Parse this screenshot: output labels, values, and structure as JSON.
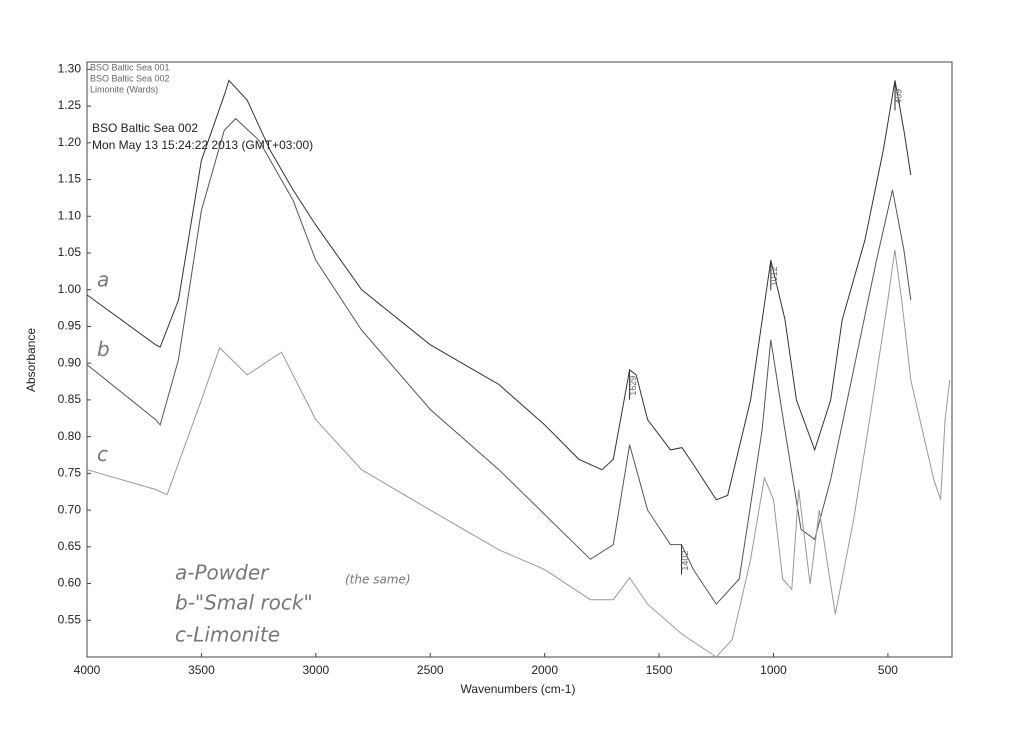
{
  "chart_data": {
    "type": "line",
    "x_label": "Wavenumbers (cm-1)",
    "y_label": "Absorbance",
    "xlim": [
      4000,
      220
    ],
    "ylim": [
      0.5,
      1.31
    ],
    "xticks": [
      4000,
      3500,
      3000,
      2500,
      2000,
      1500,
      1000,
      500
    ],
    "yticks": [
      {
        "value": 0.55,
        "label": "0.55"
      },
      {
        "value": 0.6,
        "label": "0.60"
      },
      {
        "value": 0.65,
        "label": "0.65"
      },
      {
        "value": 0.7,
        "label": "0.70"
      },
      {
        "value": 0.75,
        "label": "0.75"
      },
      {
        "value": 0.8,
        "label": "0.80"
      },
      {
        "value": 0.85,
        "label": "0.85"
      },
      {
        "value": 0.9,
        "label": "0.90"
      },
      {
        "value": 0.95,
        "label": "0.95"
      },
      {
        "value": 1.0,
        "label": "1.00"
      },
      {
        "value": 1.05,
        "label": "1.05"
      },
      {
        "value": 1.1,
        "label": "1.10"
      },
      {
        "value": 1.15,
        "label": "1.15"
      },
      {
        "value": 1.2,
        "label": "1.20"
      },
      {
        "value": 1.25,
        "label": "1.25"
      },
      {
        "value": 1.3,
        "label": "1.30"
      }
    ],
    "grid": false,
    "legend": "top-left",
    "header": [
      "BSO Baltic Sea 002",
      "Mon May 13 15:24:22 2013 (GMT+03:00)"
    ],
    "series": [
      {
        "name": "BSO  Baltic Sea 001",
        "color": "#333333",
        "tag": "a",
        "x": [
          4000,
          3700,
          3680,
          3600,
          3500,
          3400,
          3380,
          3300,
          3200,
          3100,
          3000,
          2800,
          2500,
          2200,
          2000,
          1850,
          1750,
          1700,
          1629,
          1600,
          1550,
          1450,
          1400,
          1350,
          1250,
          1200,
          1100,
          1012,
          950,
          900,
          820,
          750,
          700,
          600,
          520,
          469,
          430,
          400
        ],
        "values": [
          0.993,
          0.925,
          0.922,
          0.986,
          1.176,
          1.265,
          1.285,
          1.258,
          1.19,
          1.136,
          1.088,
          1.0,
          0.925,
          0.871,
          0.816,
          0.769,
          0.755,
          0.769,
          0.891,
          0.884,
          0.823,
          0.782,
          0.785,
          0.762,
          0.714,
          0.72,
          0.85,
          1.04,
          0.96,
          0.85,
          0.782,
          0.85,
          0.959,
          1.068,
          1.19,
          1.285,
          1.217,
          1.156
        ],
        "peaks": [
          1629,
          1012,
          469
        ]
      },
      {
        "name": "BSO Baltic Sea 002",
        "color": "#555555",
        "tag": "b",
        "x": [
          4000,
          3700,
          3680,
          3600,
          3500,
          3400,
          3350,
          3250,
          3100,
          3000,
          2800,
          2500,
          2200,
          2000,
          1800,
          1700,
          1629,
          1550,
          1450,
          1402,
          1350,
          1250,
          1150,
          1050,
          1012,
          950,
          880,
          820,
          750,
          650,
          550,
          480,
          430,
          400
        ],
        "values": [
          0.898,
          0.823,
          0.816,
          0.905,
          1.108,
          1.217,
          1.233,
          1.204,
          1.122,
          1.04,
          0.945,
          0.837,
          0.755,
          0.694,
          0.633,
          0.653,
          0.789,
          0.7,
          0.653,
          0.653,
          0.619,
          0.572,
          0.606,
          0.809,
          0.932,
          0.809,
          0.674,
          0.66,
          0.742,
          0.891,
          1.04,
          1.136,
          1.054,
          0.986
        ],
        "peaks": [
          1402
        ]
      },
      {
        "name": "Limonite (Wards)",
        "color": "#999999",
        "tag": "c",
        "x": [
          4000,
          3700,
          3650,
          3500,
          3420,
          3300,
          3150,
          3000,
          2800,
          2500,
          2200,
          2000,
          1800,
          1700,
          1629,
          1550,
          1400,
          1250,
          1180,
          1100,
          1040,
          1000,
          960,
          920,
          890,
          840,
          800,
          760,
          730,
          650,
          580,
          500,
          470,
          440,
          400,
          350,
          300,
          270,
          250,
          230
        ],
        "values": [
          0.755,
          0.728,
          0.721,
          0.85,
          0.921,
          0.884,
          0.915,
          0.823,
          0.755,
          0.7,
          0.646,
          0.619,
          0.578,
          0.578,
          0.608,
          0.572,
          0.531,
          0.5,
          0.524,
          0.633,
          0.744,
          0.714,
          0.606,
          0.592,
          0.728,
          0.599,
          0.7,
          0.619,
          0.558,
          0.687,
          0.823,
          0.986,
          1.054,
          0.986,
          0.877,
          0.809,
          0.742,
          0.714,
          0.823,
          0.877
        ],
        "peaks": []
      }
    ],
    "notes": [
      "a-Powder",
      "b-\"Smal rock\"",
      "c-Limonite",
      "(the same)"
    ]
  }
}
